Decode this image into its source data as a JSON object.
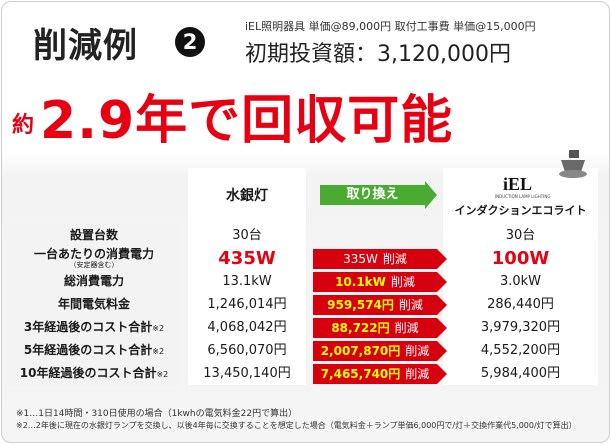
{
  "title": "削減例",
  "example_number": "2",
  "subnote": "iEL照明器具 単価@89,000円 取付工事費 単価@15,000円",
  "investment": "初期投資額：3,120,000円",
  "headline_prefix": "約",
  "headline": "2.9年で回収可能",
  "col_left": "水銀灯",
  "arrow_label": "取り換え",
  "logo_text": "iEL",
  "logo_small": "INDUCTION LAMP LIGHTING",
  "col_right": "インダクションエコライト",
  "rows": [
    {
      "label": "設置台数",
      "left": "30台",
      "mid": "",
      "mid_suffix": "",
      "right": "30台"
    },
    {
      "label": "一台あたりの消費電力",
      "sublabel": "（安定器含む）",
      "left": "435W",
      "mid": "335W",
      "mid_suffix": "削減",
      "right": "100W"
    },
    {
      "label": "総消費電力",
      "left": "13.1kW",
      "mid": "10.1kW",
      "mid_suffix": "削減",
      "right": "3.0kW"
    },
    {
      "label": "年間電気料金",
      "left": "1,246,014円",
      "mid": "959,574円",
      "mid_suffix": "削減",
      "right": "286,440円"
    },
    {
      "label": "3年経過後のコスト合計",
      "note": "※2",
      "left": "4,068,042円",
      "mid": "88,722円",
      "mid_suffix": "削減",
      "right": "3,979,320円"
    },
    {
      "label": "5年経過後のコスト合計",
      "note": "※2",
      "left": "6,560,070円",
      "mid": "2,007,870円",
      "mid_suffix": "削減",
      "right": "4,552,200円"
    },
    {
      "label": "10年経過後のコスト合計",
      "note": "※2",
      "left": "13,450,140円",
      "mid": "7,465,740円",
      "mid_suffix": "削減",
      "right": "5,984,400円"
    }
  ],
  "footnote1": "※1…1日14時間・310日使用の場合（1kwhの電気料金22円で算出）",
  "footnote2": "※2…2年後に現在の水銀灯ランプを交換し、以後4年毎に交換することを想定した場合（電気料金＋ランプ単価6,000円で/灯＋交換作業代5,000/灯で算出）",
  "colors": {
    "red": "#d7000f",
    "green": "#4aab32",
    "highlight": "#e60012"
  }
}
